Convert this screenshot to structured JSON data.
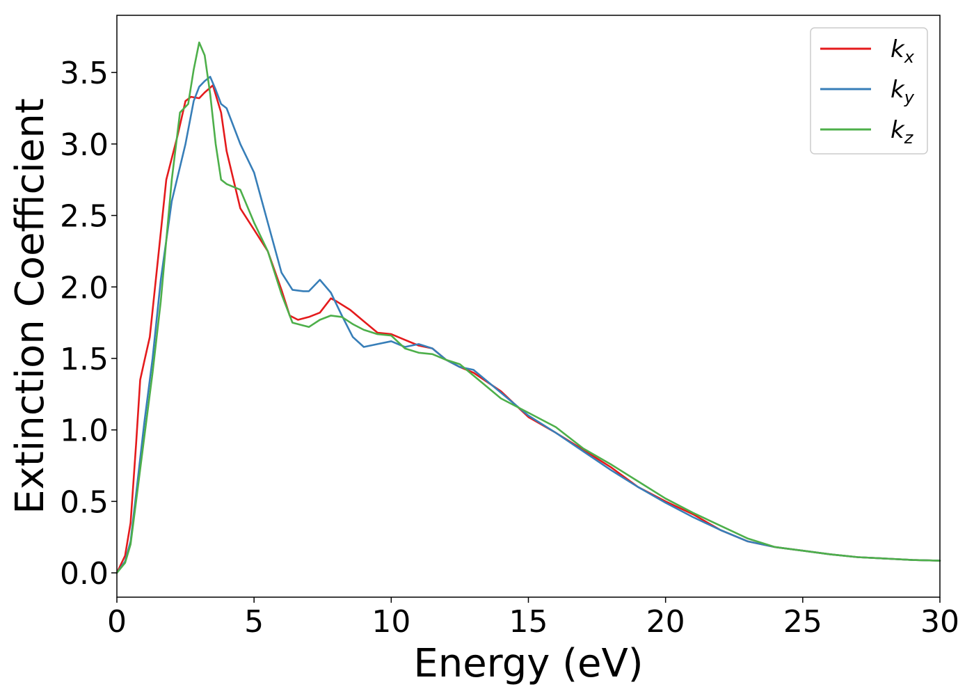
{
  "chart_data": {
    "type": "line",
    "title": "",
    "xlabel": "Energy (eV)",
    "ylabel": "Extinction Coefficient",
    "xlim": [
      0,
      30
    ],
    "ylim": [
      -0.17,
      3.9
    ],
    "xticks": [
      "0",
      "5",
      "10",
      "15",
      "20",
      "25",
      "30"
    ],
    "yticks": [
      "0.0",
      "0.5",
      "1.0",
      "1.5",
      "2.0",
      "2.5",
      "3.0",
      "3.5"
    ],
    "grid": false,
    "legend_position": "top-right",
    "series": [
      {
        "name": "k_x",
        "label_base": "k",
        "label_sub": "x",
        "color": "#e41a1c",
        "x": [
          0,
          0.3,
          0.5,
          0.7,
          0.85,
          1.0,
          1.2,
          1.5,
          1.8,
          2.2,
          2.5,
          2.7,
          3.0,
          3.2,
          3.5,
          3.8,
          4.0,
          4.5,
          5.0,
          5.5,
          6.0,
          6.3,
          6.6,
          7.0,
          7.4,
          7.8,
          8.0,
          8.5,
          9.0,
          9.5,
          10.0,
          10.5,
          11.0,
          11.5,
          12.0,
          12.5,
          13.0,
          14.0,
          15.0,
          16.0,
          17.0,
          18.0,
          19.0,
          20.0,
          21.0,
          22.0,
          23.0,
          24.0,
          25.0,
          26.0,
          27.0,
          28.0,
          29.0,
          30.0
        ],
        "y": [
          0.0,
          0.12,
          0.35,
          0.9,
          1.35,
          1.48,
          1.65,
          2.2,
          2.75,
          3.05,
          3.3,
          3.33,
          3.32,
          3.36,
          3.41,
          3.22,
          2.95,
          2.55,
          2.4,
          2.25,
          1.98,
          1.8,
          1.77,
          1.79,
          1.82,
          1.92,
          1.9,
          1.84,
          1.76,
          1.68,
          1.67,
          1.63,
          1.59,
          1.57,
          1.49,
          1.44,
          1.4,
          1.27,
          1.09,
          0.98,
          0.86,
          0.74,
          0.6,
          0.5,
          0.41,
          0.3,
          0.22,
          0.18,
          0.155,
          0.13,
          0.11,
          0.1,
          0.09,
          0.085
        ]
      },
      {
        "name": "k_y",
        "label_base": "k",
        "label_sub": "y",
        "color": "#377eb8",
        "x": [
          0,
          0.3,
          0.5,
          0.7,
          1.0,
          1.3,
          1.6,
          2.0,
          2.5,
          2.8,
          3.0,
          3.2,
          3.4,
          3.6,
          3.8,
          4.0,
          4.5,
          5.0,
          5.5,
          6.0,
          6.4,
          6.8,
          7.0,
          7.4,
          7.8,
          8.2,
          8.6,
          9.0,
          9.5,
          10.0,
          10.5,
          11.0,
          11.5,
          12.0,
          12.5,
          13.0,
          14.0,
          15.0,
          16.0,
          17.0,
          18.0,
          19.0,
          20.0,
          21.0,
          22.0,
          23.0,
          24.0,
          25.0,
          26.0,
          27.0,
          28.0,
          29.0,
          30.0
        ],
        "y": [
          0.0,
          0.08,
          0.22,
          0.55,
          1.05,
          1.5,
          2.05,
          2.6,
          3.0,
          3.3,
          3.4,
          3.44,
          3.47,
          3.38,
          3.28,
          3.25,
          3.0,
          2.8,
          2.45,
          2.1,
          1.98,
          1.97,
          1.97,
          2.05,
          1.96,
          1.8,
          1.65,
          1.58,
          1.6,
          1.62,
          1.58,
          1.6,
          1.57,
          1.49,
          1.44,
          1.42,
          1.26,
          1.1,
          0.98,
          0.85,
          0.72,
          0.6,
          0.49,
          0.39,
          0.3,
          0.22,
          0.18,
          0.155,
          0.13,
          0.11,
          0.1,
          0.09,
          0.085
        ]
      },
      {
        "name": "k_z",
        "label_base": "k",
        "label_sub": "z",
        "color": "#4daf4a",
        "x": [
          0,
          0.3,
          0.5,
          0.7,
          1.0,
          1.3,
          1.6,
          2.0,
          2.3,
          2.6,
          2.8,
          3.0,
          3.2,
          3.4,
          3.6,
          3.8,
          4.0,
          4.5,
          5.0,
          5.5,
          6.0,
          6.4,
          6.8,
          7.0,
          7.4,
          7.8,
          8.2,
          8.6,
          9.0,
          9.5,
          10.0,
          10.5,
          11.0,
          11.5,
          12.0,
          12.5,
          13.0,
          14.0,
          15.0,
          16.0,
          17.0,
          18.0,
          19.0,
          20.0,
          21.0,
          22.0,
          23.0,
          24.0,
          25.0,
          26.0,
          27.0,
          28.0,
          29.0,
          30.0
        ],
        "y": [
          0.0,
          0.07,
          0.2,
          0.5,
          0.95,
          1.4,
          1.9,
          2.75,
          3.22,
          3.28,
          3.52,
          3.71,
          3.62,
          3.35,
          3.0,
          2.75,
          2.72,
          2.68,
          2.45,
          2.25,
          1.95,
          1.75,
          1.73,
          1.72,
          1.77,
          1.8,
          1.79,
          1.74,
          1.7,
          1.67,
          1.66,
          1.57,
          1.54,
          1.53,
          1.49,
          1.46,
          1.38,
          1.22,
          1.12,
          1.02,
          0.87,
          0.76,
          0.64,
          0.52,
          0.42,
          0.33,
          0.24,
          0.18,
          0.155,
          0.13,
          0.11,
          0.1,
          0.09,
          0.085
        ]
      }
    ]
  }
}
